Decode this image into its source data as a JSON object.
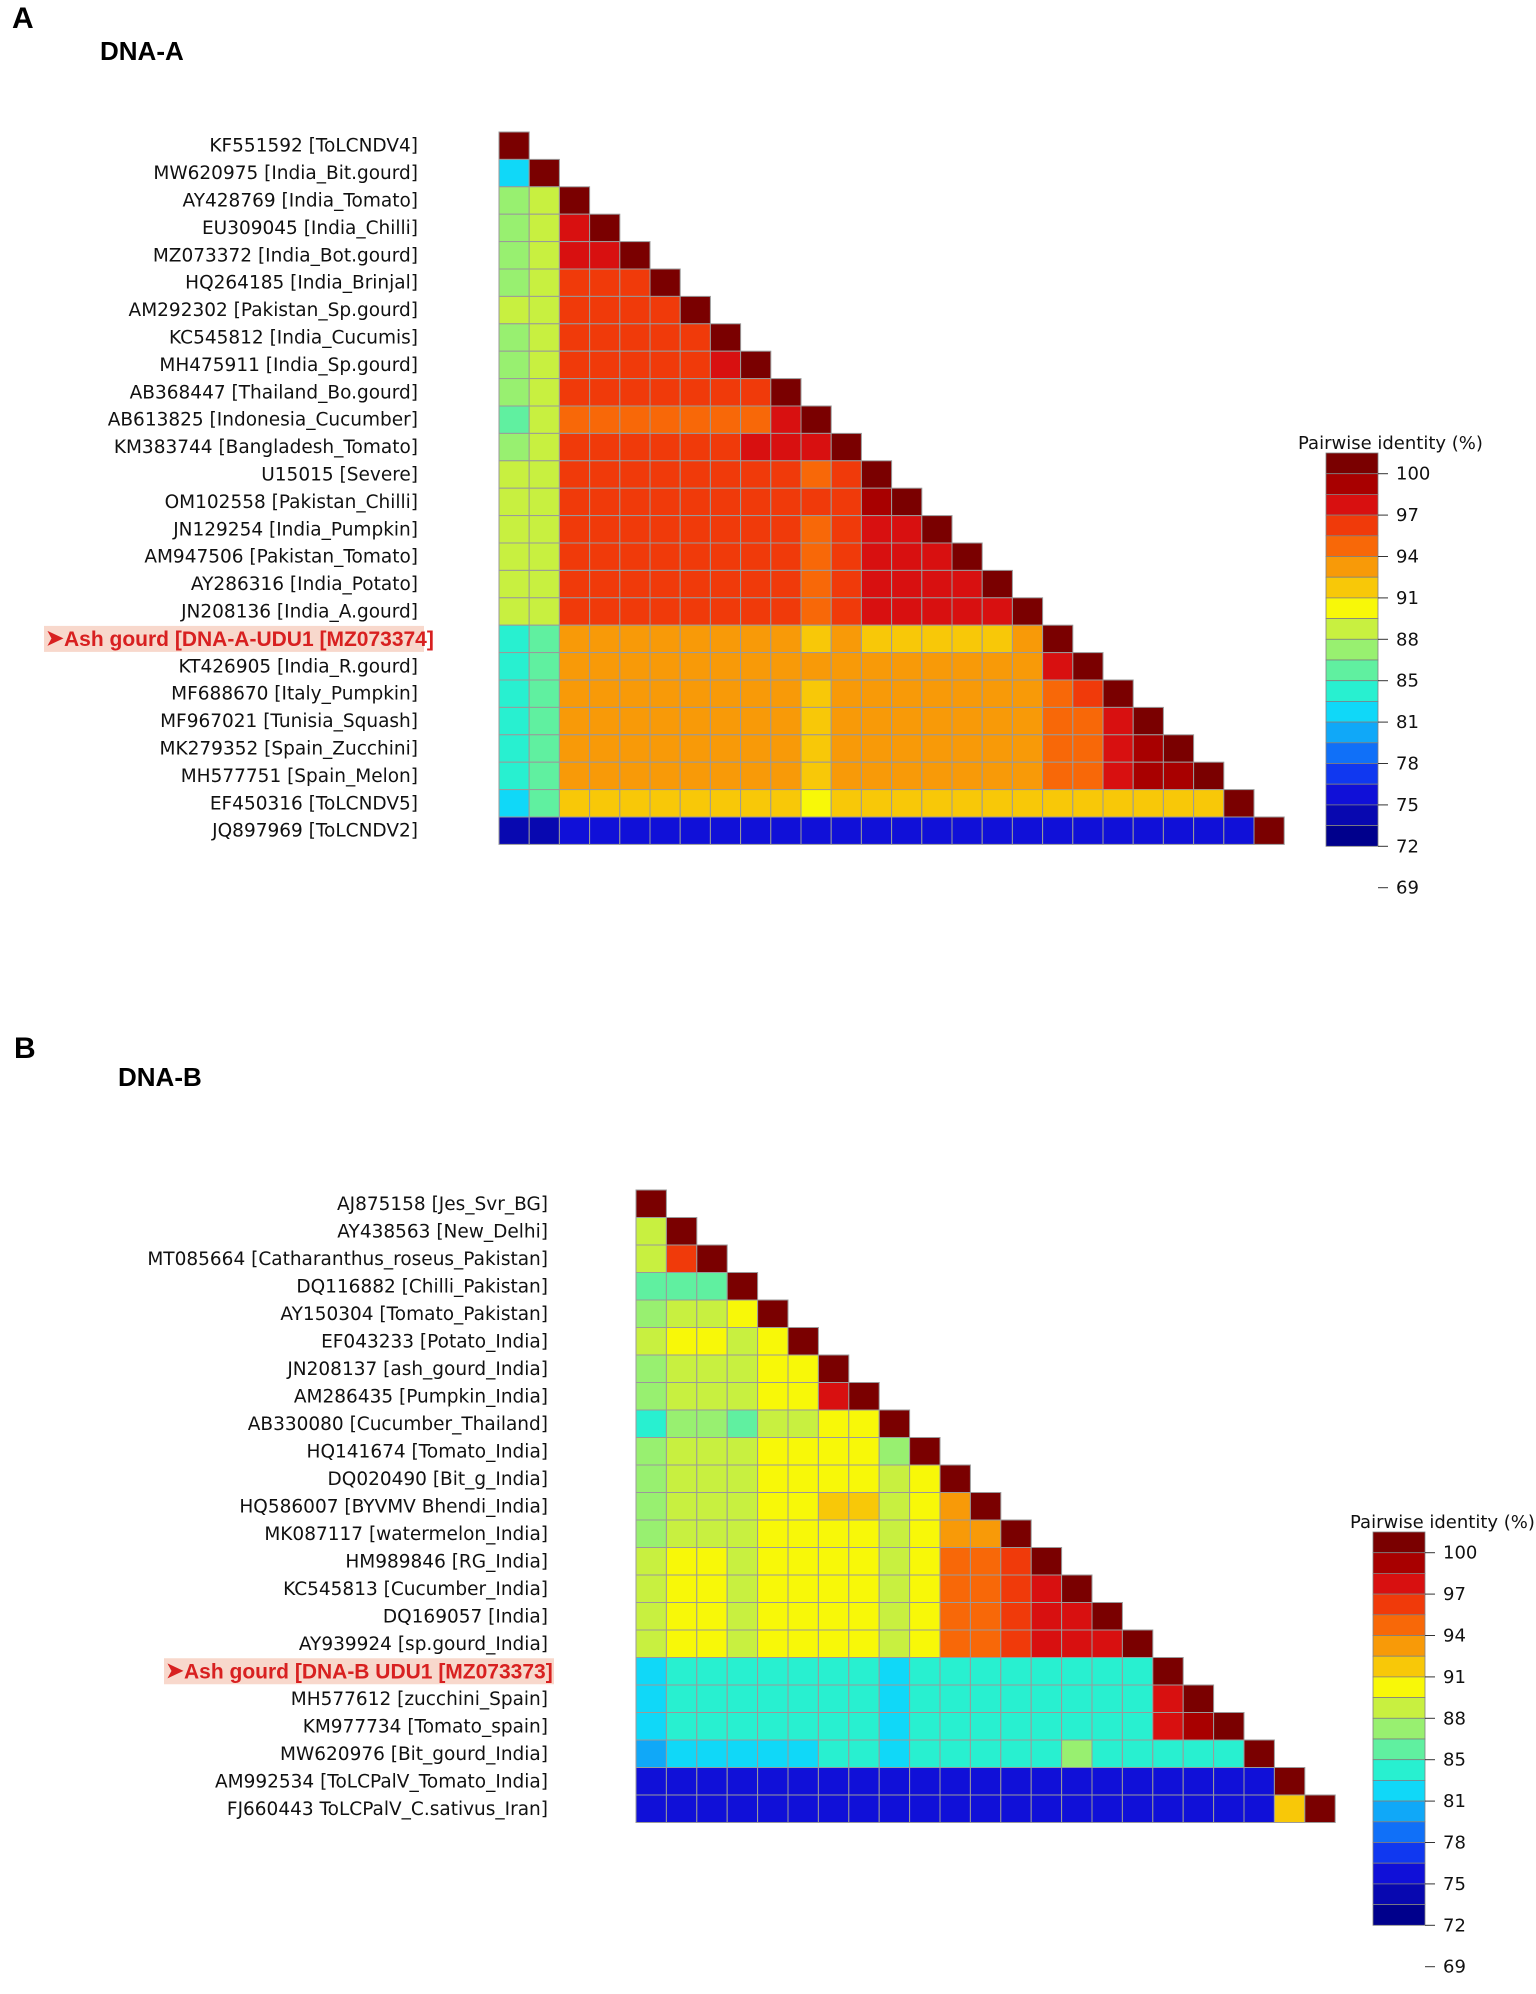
{
  "figure": {
    "panels": [
      {
        "letter": "A",
        "title": "DNA-A"
      },
      {
        "letter": "B",
        "title": "DNA-B"
      }
    ]
  },
  "colors": {
    "highlight_text": "#d82020",
    "highlight_bg": "#f8d8cc",
    "colorbar": [
      "#7a0000",
      "#a80000",
      "#d81010",
      "#f03a0a",
      "#f86808",
      "#f89a08",
      "#f8c808",
      "#f8f808",
      "#c8f040",
      "#98f070",
      "#60f0a0",
      "#28f0d0",
      "#10d8f8",
      "#10a8f8",
      "#1070f8",
      "#1038f0",
      "#1010d8",
      "#0808b0",
      "#00008c"
    ]
  },
  "legend": {
    "title": "Pairwise identity (%)",
    "ticks": [
      "100",
      "97",
      "94",
      "91",
      "88",
      "85",
      "81",
      "78",
      "75",
      "72",
      "69"
    ]
  },
  "chart_data": [
    {
      "type": "heatmap",
      "title": "DNA-A",
      "value_label": "Pairwise identity (%)",
      "value_range": [
        68,
        100
      ],
      "highlighted_row": 18,
      "labels": [
        "KF551592 [ToLCNDV4]",
        "MW620975 [India_Bit.gourd]",
        "AY428769 [India_Tomato]",
        "EU309045 [India_Chilli]",
        "MZ073372 [India_Bot.gourd]",
        "HQ264185 [India_Brinjal]",
        "AM292302 [Pakistan_Sp.gourd]",
        "KC545812 [India_Cucumis]",
        "MH475911 [India_Sp.gourd]",
        "AB368447 [Thailand_Bo.gourd]",
        "AB613825 [Indonesia_Cucumber]",
        "KM383744 [Bangladesh_Tomato]",
        "U15015 [Severe]",
        "OM102558 [Pakistan_Chilli]",
        "JN129254 [India_Pumpkin]",
        "AM947506 [Pakistan_Tomato]",
        "AY286316 [India_Potato]",
        "JN208136 [India_A.gourd]",
        "Ash gourd [DNA-A-UDU1 [MZ073374]",
        "KT426905 [India_R.gourd]",
        "MF688670 [Italy_Pumpkin]",
        "MF967021 [Tunisia_Squash]",
        "MK279352 [Spain_Zucchini]",
        "MH577751 [Spain_Melon]",
        "EF450316 [ToLCNDV5]",
        "JQ897969 [ToLCNDV2]"
      ],
      "rows": [
        [
          100
        ],
        [
          78,
          100
        ],
        [
          84,
          85,
          100
        ],
        [
          84,
          85,
          97,
          100
        ],
        [
          84,
          85,
          97,
          97,
          100
        ],
        [
          84,
          85,
          95,
          95,
          95,
          100
        ],
        [
          85,
          86,
          95,
          95,
          94,
          94,
          100
        ],
        [
          84,
          86,
          95,
          95,
          94,
          94,
          95,
          100
        ],
        [
          84,
          86,
          95,
          95,
          94,
          94,
          95,
          97,
          100
        ],
        [
          84,
          85,
          94,
          94,
          94,
          94,
          95,
          95,
          95,
          100
        ],
        [
          83,
          85,
          93,
          93,
          93,
          93,
          93,
          93,
          93,
          96,
          100
        ],
        [
          84,
          85,
          95,
          95,
          95,
          95,
          95,
          95,
          96,
          96,
          97,
          100
        ],
        [
          85,
          86,
          95,
          95,
          95,
          95,
          95,
          95,
          95,
          94,
          93,
          95,
          100
        ],
        [
          85,
          86,
          95,
          95,
          95,
          95,
          95,
          95,
          95,
          94,
          94,
          95,
          98,
          100
        ],
        [
          85,
          86,
          95,
          95,
          95,
          95,
          95,
          95,
          95,
          94,
          93,
          95,
          96,
          96,
          100
        ],
        [
          85,
          86,
          95,
          95,
          95,
          95,
          95,
          95,
          95,
          94,
          93,
          95,
          96,
          96,
          96,
          100
        ],
        [
          85,
          86,
          95,
          95,
          95,
          95,
          95,
          95,
          95,
          94,
          93,
          95,
          96,
          96,
          96,
          96,
          100
        ],
        [
          85,
          86,
          95,
          95,
          95,
          95,
          95,
          95,
          95,
          94,
          93,
          95,
          96,
          96,
          96,
          96,
          96,
          100
        ],
        [
          81,
          83,
          91,
          91,
          91,
          91,
          91,
          91,
          91,
          91,
          90,
          91,
          90,
          90,
          90,
          90,
          90,
          91,
          100
        ],
        [
          81,
          83,
          92,
          92,
          92,
          92,
          92,
          92,
          92,
          92,
          91,
          92,
          92,
          92,
          92,
          92,
          92,
          92,
          97,
          100
        ],
        [
          81,
          83,
          91,
          91,
          91,
          91,
          91,
          91,
          91,
          91,
          90,
          91,
          91,
          91,
          91,
          91,
          91,
          91,
          93,
          94,
          100
        ],
        [
          81,
          83,
          91,
          91,
          91,
          91,
          91,
          91,
          91,
          91,
          89,
          91,
          91,
          91,
          91,
          91,
          91,
          91,
          93,
          93,
          97,
          100
        ],
        [
          81,
          83,
          91,
          91,
          91,
          91,
          91,
          91,
          91,
          91,
          89,
          91,
          91,
          91,
          91,
          91,
          91,
          91,
          93,
          93,
          97,
          99,
          100
        ],
        [
          81,
          83,
          91,
          91,
          91,
          91,
          91,
          91,
          91,
          91,
          89,
          91,
          91,
          91,
          91,
          91,
          91,
          91,
          93,
          93,
          97,
          98,
          98,
          100
        ],
        [
          79,
          82,
          89,
          89,
          89,
          89,
          89,
          89,
          89,
          89,
          88,
          89,
          89,
          89,
          89,
          89,
          89,
          89,
          90,
          90,
          90,
          90,
          90,
          90,
          100
        ],
        [
          70,
          70,
          72,
          72,
          72,
          72,
          72,
          72,
          72,
          72,
          72,
          72,
          72,
          72,
          72,
          72,
          72,
          72,
          72,
          72,
          72,
          72,
          72,
          72,
          72,
          100
        ]
      ]
    },
    {
      "type": "heatmap",
      "title": "DNA-B",
      "value_label": "Pairwise identity (%)",
      "value_range": [
        68,
        100
      ],
      "highlighted_row": 17,
      "labels": [
        "AJ875158 [Jes_Svr_BG]",
        "AY438563 [New_Delhi]",
        "MT085664 [Catharanthus_roseus_Pakistan]",
        "DQ116882 [Chilli_Pakistan]",
        "AY150304 [Tomato_Pakistan]",
        "EF043233 [Potato_India]",
        "JN208137 [ash_gourd_India]",
        "AM286435 [Pumpkin_India]",
        "AB330080 [Cucumber_Thailand]",
        "HQ141674 [Tomato_India]",
        "DQ020490 [Bit_g_India]",
        "HQ586007 [BYVMV Bhendi_India]",
        "MK087117 [watermelon_India]",
        "HM989846 [RG_India]",
        "KC545813 [Cucumber_India]",
        "DQ169057 [India]",
        "AY939924 [sp.gourd_India]",
        "Ash gourd [DNA-B UDU1 [MZ073373]",
        "MH577612 [zucchini_Spain]",
        "KM977734 [Tomato_spain]",
        "MW620976 [Bit_gourd_India]",
        "AM992534 [ToLCPalV_Tomato_India]",
        "FJ660443 ToLCPalV_C.sativus_Iran]"
      ],
      "rows": [
        [
          100
        ],
        [
          86,
          100
        ],
        [
          86,
          94,
          100
        ],
        [
          83,
          83,
          82,
          100
        ],
        [
          84,
          86,
          86,
          88,
          100
        ],
        [
          85,
          87,
          87,
          86,
          87,
          100
        ],
        [
          84,
          86,
          86,
          85,
          88,
          88,
          100
        ],
        [
          84,
          86,
          86,
          85,
          88,
          88,
          97,
          100
        ],
        [
          80,
          84,
          84,
          82,
          86,
          85,
          88,
          88,
          100
        ],
        [
          84,
          85,
          85,
          85,
          87,
          87,
          88,
          88,
          84,
          100
        ],
        [
          84,
          85,
          85,
          85,
          87,
          87,
          88,
          88,
          85,
          88,
          100
        ],
        [
          84,
          86,
          86,
          86,
          88,
          87,
          89,
          89,
          85,
          88,
          91,
          100
        ],
        [
          84,
          86,
          86,
          86,
          87,
          87,
          88,
          88,
          85,
          88,
          91,
          91,
          100
        ],
        [
          85,
          87,
          87,
          86,
          88,
          88,
          88,
          88,
          85,
          88,
          93,
          93,
          94,
          100
        ],
        [
          85,
          87,
          87,
          86,
          88,
          88,
          88,
          88,
          85,
          88,
          93,
          93,
          94,
          97,
          100
        ],
        [
          85,
          87,
          87,
          86,
          88,
          88,
          88,
          88,
          85,
          88,
          93,
          93,
          94,
          96,
          97,
          100
        ],
        [
          85,
          87,
          87,
          86,
          88,
          88,
          88,
          88,
          85,
          88,
          93,
          93,
          94,
          96,
          96,
          97,
          100
        ],
        [
          79,
          80,
          80,
          80,
          80,
          80,
          80,
          80,
          78,
          80,
          80,
          80,
          80,
          80,
          80,
          80,
          80,
          100
        ],
        [
          78,
          80,
          80,
          80,
          80,
          80,
          80,
          80,
          78,
          80,
          80,
          80,
          80,
          80,
          80,
          80,
          80,
          97,
          100
        ],
        [
          78,
          80,
          80,
          80,
          80,
          80,
          80,
          80,
          78,
          80,
          80,
          80,
          80,
          80,
          80,
          80,
          80,
          97,
          98,
          100
        ],
        [
          77,
          79,
          79,
          79,
          79,
          79,
          80,
          80,
          78,
          80,
          80,
          80,
          80,
          80,
          84,
          80,
          80,
          81,
          81,
          81,
          100
        ],
        [
          72,
          72,
          72,
          72,
          72,
          72,
          72,
          72,
          72,
          72,
          72,
          72,
          72,
          72,
          72,
          72,
          72,
          71,
          71,
          71,
          71,
          100
        ],
        [
          72,
          72,
          72,
          72,
          72,
          72,
          72,
          72,
          72,
          72,
          72,
          72,
          72,
          72,
          72,
          72,
          72,
          71,
          71,
          71,
          71,
          90,
          100
        ]
      ]
    }
  ]
}
